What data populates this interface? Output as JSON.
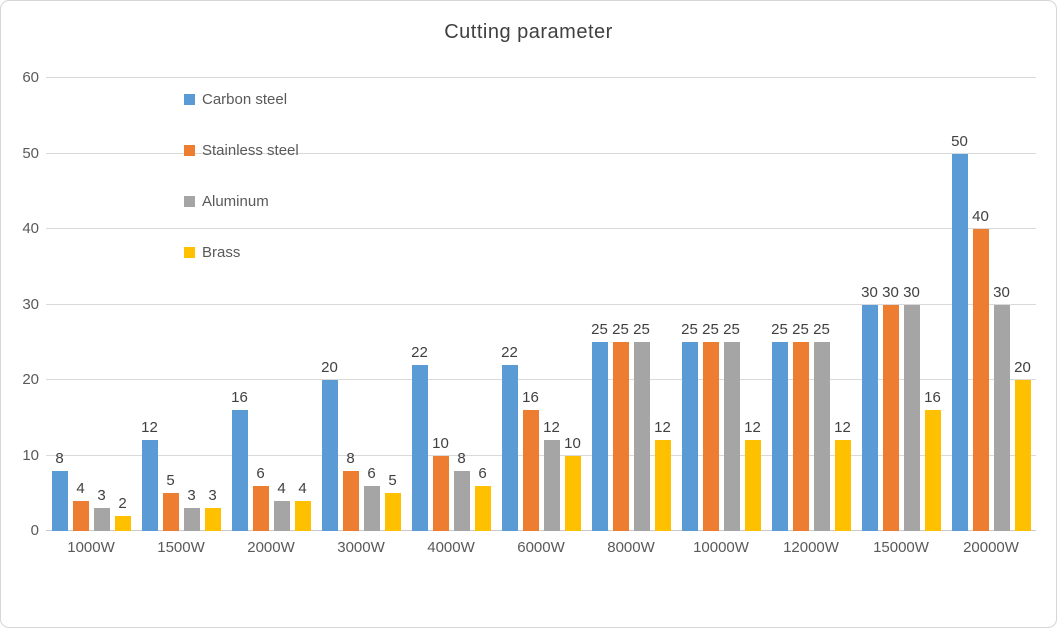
{
  "title": "Cutting parameter",
  "colors": {
    "carbon_steel": "#5B9BD5",
    "stainless_steel": "#ED7D31",
    "aluminum": "#A5A5A5",
    "brass": "#FFC000",
    "title_text": "#404040",
    "axis_text": "#595959",
    "data_label_text": "#404040",
    "gridline": "#D9D9D9",
    "chart_border": "#D6D6D6",
    "background": "#FFFFFF"
  },
  "chart_data": {
    "type": "bar",
    "title": "Cutting parameter",
    "categories": [
      "1000W",
      "1500W",
      "2000W",
      "3000W",
      "4000W",
      "6000W",
      "8000W",
      "10000W",
      "12000W",
      "15000W",
      "20000W"
    ],
    "series": [
      {
        "name": "Carbon steel",
        "color": "#5B9BD5",
        "values": [
          8,
          12,
          16,
          20,
          22,
          22,
          25,
          25,
          25,
          30,
          50
        ]
      },
      {
        "name": "Stainless steel",
        "color": "#ED7D31",
        "values": [
          4,
          5,
          6,
          8,
          10,
          16,
          25,
          25,
          25,
          30,
          40
        ]
      },
      {
        "name": "Aluminum",
        "color": "#A5A5A5",
        "values": [
          3,
          3,
          4,
          6,
          8,
          12,
          25,
          25,
          25,
          30,
          30
        ]
      },
      {
        "name": "Brass",
        "color": "#FFC000",
        "values": [
          2,
          3,
          4,
          5,
          6,
          10,
          12,
          12,
          12,
          16,
          20
        ]
      }
    ],
    "y_ticks": [
      0,
      10,
      20,
      30,
      40,
      50,
      60
    ],
    "ylim": [
      0,
      60
    ],
    "xlabel": "",
    "ylabel": "",
    "grid": true,
    "data_labels": true,
    "legend_position": "inside-top-left"
  }
}
